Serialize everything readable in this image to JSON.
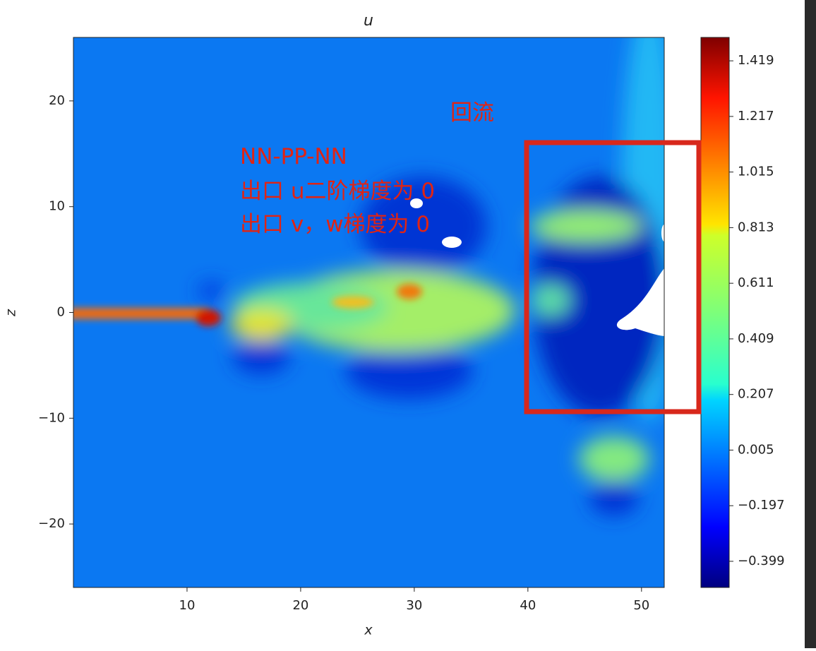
{
  "chart_data": {
    "type": "contour",
    "title": "u",
    "x_label": "x",
    "y_label": "z",
    "xlim": [
      0,
      52
    ],
    "xticks": [
      10,
      20,
      30,
      40,
      50
    ],
    "ylim": [
      -26,
      26
    ],
    "yticks": [
      {
        "value": -20,
        "label": "−20"
      },
      {
        "value": -10,
        "label": "−10"
      },
      0,
      10,
      20
    ],
    "colorbar": {
      "lim": [
        -0.494,
        1.504
      ],
      "colormap": "jet",
      "ticks": [
        1.419,
        1.217,
        1.015,
        0.813,
        0.611,
        0.409,
        0.207,
        0.005,
        {
          "value": -0.197,
          "label": "−0.197"
        },
        {
          "value": -0.399,
          "label": "−0.399"
        }
      ]
    },
    "annotations": [
      "回流",
      "NN-PP-NN",
      "出口 u二阶梯度为 0",
      "出口 v，w梯度为 0"
    ]
  }
}
